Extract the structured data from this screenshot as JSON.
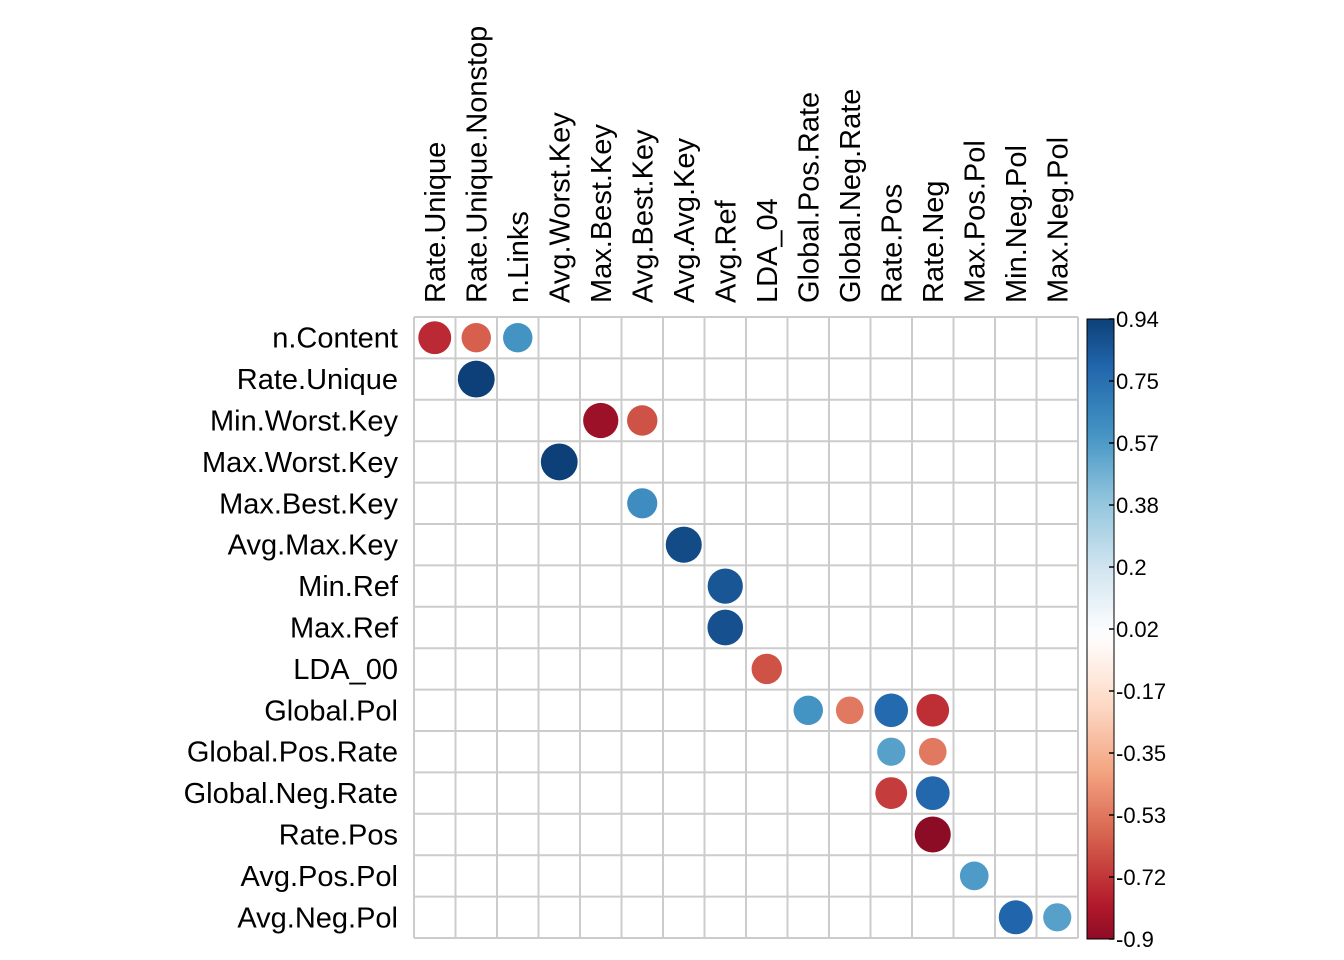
{
  "chart_data": {
    "type": "heatmap",
    "style": "corrplot-circle",
    "title": "",
    "xlabel": "",
    "ylabel": "",
    "columns": [
      "Rate.Unique",
      "Rate.Unique.Nonstop",
      "n.Links",
      "Avg.Worst.Key",
      "Max.Best.Key",
      "Avg.Best.Key",
      "Avg.Avg.Key",
      "Avg.Ref",
      "LDA_04",
      "Global.Pos.Rate",
      "Global.Neg.Rate",
      "Rate.Pos",
      "Rate.Neg",
      "Max.Pos.Pol",
      "Min.Neg.Pol",
      "Max.Neg.Pol"
    ],
    "rows": [
      "n.Content",
      "Rate.Unique",
      "Min.Worst.Key",
      "Max.Worst.Key",
      "Max.Best.Key",
      "Avg.Max.Key",
      "Min.Ref",
      "Max.Ref",
      "LDA_00",
      "Global.Pol",
      "Global.Pos.Rate",
      "Global.Neg.Rate",
      "Rate.Pos",
      "Avg.Pos.Pol",
      "Avg.Neg.Pol"
    ],
    "cells": [
      {
        "row": "n.Content",
        "col": "Rate.Unique",
        "value": -0.75
      },
      {
        "row": "n.Content",
        "col": "Rate.Unique.Nonstop",
        "value": -0.6
      },
      {
        "row": "n.Content",
        "col": "n.Links",
        "value": 0.6
      },
      {
        "row": "Rate.Unique",
        "col": "Rate.Unique.Nonstop",
        "value": 0.94
      },
      {
        "row": "Min.Worst.Key",
        "col": "Max.Best.Key",
        "value": -0.86
      },
      {
        "row": "Min.Worst.Key",
        "col": "Avg.Best.Key",
        "value": -0.64
      },
      {
        "row": "Max.Worst.Key",
        "col": "Avg.Worst.Key",
        "value": 0.94
      },
      {
        "row": "Max.Best.Key",
        "col": "Avg.Best.Key",
        "value": 0.63
      },
      {
        "row": "Avg.Max.Key",
        "col": "Avg.Avg.Key",
        "value": 0.9
      },
      {
        "row": "Min.Ref",
        "col": "Avg.Ref",
        "value": 0.86
      },
      {
        "row": "Max.Ref",
        "col": "Avg.Ref",
        "value": 0.88
      },
      {
        "row": "LDA_00",
        "col": "LDA_04",
        "value": -0.64
      },
      {
        "row": "Global.Pol",
        "col": "Global.Pos.Rate",
        "value": 0.6
      },
      {
        "row": "Global.Pol",
        "col": "Global.Neg.Rate",
        "value": -0.53
      },
      {
        "row": "Global.Pol",
        "col": "Rate.Pos",
        "value": 0.78
      },
      {
        "row": "Global.Pol",
        "col": "Rate.Neg",
        "value": -0.74
      },
      {
        "row": "Global.Pos.Rate",
        "col": "Rate.Pos",
        "value": 0.55
      },
      {
        "row": "Global.Pos.Rate",
        "col": "Rate.Neg",
        "value": -0.53
      },
      {
        "row": "Global.Neg.Rate",
        "col": "Rate.Pos",
        "value": -0.7
      },
      {
        "row": "Global.Neg.Rate",
        "col": "Rate.Neg",
        "value": 0.79
      },
      {
        "row": "Rate.Pos",
        "col": "Rate.Neg",
        "value": -0.9
      },
      {
        "row": "Avg.Pos.Pol",
        "col": "Max.Pos.Pol",
        "value": 0.57
      },
      {
        "row": "Avg.Neg.Pol",
        "col": "Min.Neg.Pol",
        "value": 0.8
      },
      {
        "row": "Avg.Neg.Pol",
        "col": "Max.Neg.Pol",
        "value": 0.55
      }
    ],
    "colorbar": {
      "range": [
        -0.9,
        0.94
      ],
      "ticks": [
        "0.94",
        "0.75",
        "0.57",
        "0.38",
        "0.2",
        "0.02",
        "-0.17",
        "-0.35",
        "-0.53",
        "-0.72",
        "-0.9"
      ],
      "palette": [
        "#67001F",
        "#B2182B",
        "#D6604D",
        "#F4A582",
        "#FDDBC7",
        "#FFFFFF",
        "#D1E5F0",
        "#92C5DE",
        "#4393C3",
        "#2166AC",
        "#053061"
      ]
    },
    "grid": true,
    "grid_color": "#cccccc"
  }
}
